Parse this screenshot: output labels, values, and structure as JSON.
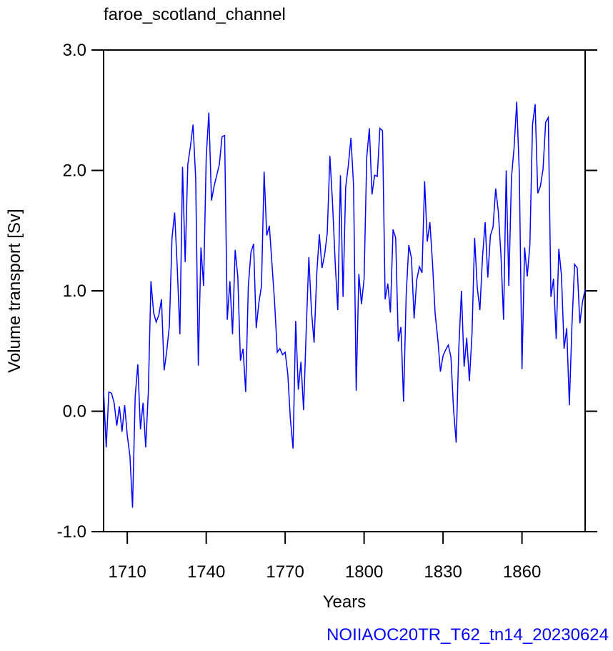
{
  "chart_data": {
    "type": "line",
    "title": "faroe_scotland_channel",
    "x_label": "Years",
    "y_label": "Volume transport [Sv]",
    "annotation": "NOIIAOC20TR_T62_tn14_20230624",
    "xlim": [
      1701,
      1884
    ],
    "xticks": [
      1710,
      1740,
      1770,
      1800,
      1830,
      1860
    ],
    "ylim": [
      -1,
      3
    ],
    "yticks": [
      {
        "value": -1,
        "label": "-1.0"
      },
      {
        "value": 0,
        "label": "0.0"
      },
      {
        "value": 1,
        "label": "1.0"
      },
      {
        "value": 2,
        "label": "2.0"
      },
      {
        "value": 3,
        "label": "3.0"
      }
    ],
    "x": [
      1701,
      1702,
      1703,
      1704,
      1705,
      1706,
      1707,
      1708,
      1709,
      1710,
      1711,
      1712,
      1713,
      1714,
      1715,
      1716,
      1717,
      1718,
      1719,
      1720,
      1721,
      1722,
      1723,
      1724,
      1725,
      1726,
      1727,
      1728,
      1729,
      1730,
      1731,
      1732,
      1733,
      1734,
      1735,
      1736,
      1737,
      1738,
      1739,
      1740,
      1741,
      1742,
      1743,
      1744,
      1745,
      1746,
      1747,
      1748,
      1749,
      1750,
      1751,
      1752,
      1753,
      1754,
      1755,
      1756,
      1757,
      1758,
      1759,
      1760,
      1761,
      1762,
      1763,
      1764,
      1765,
      1766,
      1767,
      1768,
      1769,
      1770,
      1771,
      1772,
      1773,
      1774,
      1775,
      1776,
      1777,
      1778,
      1779,
      1780,
      1781,
      1782,
      1783,
      1784,
      1785,
      1786,
      1787,
      1788,
      1789,
      1790,
      1791,
      1792,
      1793,
      1794,
      1795,
      1796,
      1797,
      1798,
      1799,
      1800,
      1801,
      1802,
      1803,
      1804,
      1805,
      1806,
      1807,
      1808,
      1809,
      1810,
      1811,
      1812,
      1813,
      1814,
      1815,
      1816,
      1817,
      1818,
      1819,
      1820,
      1821,
      1822,
      1823,
      1824,
      1825,
      1826,
      1827,
      1828,
      1829,
      1830,
      1831,
      1832,
      1833,
      1834,
      1835,
      1836,
      1837,
      1838,
      1839,
      1840,
      1841,
      1842,
      1843,
      1844,
      1845,
      1846,
      1847,
      1848,
      1849,
      1850,
      1851,
      1852,
      1853,
      1854,
      1855,
      1856,
      1857,
      1858,
      1859,
      1860,
      1861,
      1862,
      1863,
      1864,
      1865,
      1866,
      1867,
      1868,
      1869,
      1870,
      1871,
      1872,
      1873,
      1874,
      1875,
      1876,
      1877,
      1878,
      1879,
      1880,
      1881,
      1882,
      1883,
      1884
    ],
    "series": [
      {
        "color": "#0000ff",
        "values": [
          0.17,
          -0.3,
          0.16,
          0.15,
          0.07,
          -0.12,
          0.04,
          -0.17,
          0.05,
          -0.2,
          -0.37,
          -0.8,
          0.12,
          0.39,
          -0.15,
          0.07,
          -0.3,
          0.16,
          1.08,
          0.82,
          0.74,
          0.8,
          0.93,
          0.34,
          0.5,
          0.71,
          1.44,
          1.65,
          1.19,
          0.64,
          2.03,
          1.24,
          2.05,
          2.2,
          2.38,
          1.93,
          0.38,
          1.36,
          1.04,
          2.11,
          2.48,
          1.75,
          1.87,
          1.96,
          2.05,
          2.28,
          2.29,
          0.76,
          1.08,
          0.64,
          1.34,
          1.12,
          0.42,
          0.52,
          0.16,
          1.04,
          1.32,
          1.39,
          0.69,
          0.9,
          1.04,
          1.99,
          1.46,
          1.54,
          1.22,
          0.9,
          0.49,
          0.52,
          0.47,
          0.49,
          0.31,
          -0.07,
          -0.31,
          0.75,
          0.18,
          0.41,
          0.01,
          0.67,
          1.28,
          0.83,
          0.57,
          1.14,
          1.47,
          1.19,
          1.3,
          1.48,
          2.12,
          1.73,
          1.24,
          0.84,
          1.96,
          0.95,
          1.86,
          2.04,
          2.27,
          1.87,
          0.17,
          1.14,
          0.89,
          1.1,
          2.11,
          2.35,
          1.8,
          1.96,
          1.95,
          2.35,
          2.33,
          0.93,
          1.06,
          0.82,
          1.51,
          1.44,
          0.58,
          0.7,
          0.08,
          0.97,
          1.38,
          1.27,
          0.77,
          1.09,
          1.2,
          1.15,
          1.91,
          1.41,
          1.57,
          1.23,
          0.81,
          0.6,
          0.33,
          0.46,
          0.51,
          0.55,
          0.45,
          0.01,
          -0.26,
          0.53,
          1.0,
          0.37,
          0.61,
          0.25,
          0.64,
          1.44,
          1.03,
          0.84,
          1.28,
          1.57,
          1.11,
          1.46,
          1.53,
          1.85,
          1.66,
          1.3,
          0.76,
          2.0,
          1.04,
          1.94,
          2.19,
          2.57,
          1.97,
          0.35,
          1.36,
          1.12,
          1.38,
          2.38,
          2.55,
          1.81,
          1.87,
          2.01,
          2.4,
          2.44,
          0.95,
          1.1,
          0.6,
          1.35,
          1.13,
          0.52,
          0.69,
          0.05,
          0.72,
          1.22,
          1.19,
          0.73,
          0.91,
          1.01
        ]
      }
    ]
  }
}
